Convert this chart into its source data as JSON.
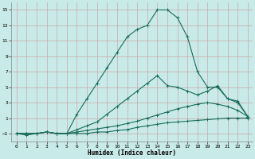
{
  "xlabel": "Humidex (Indice chaleur)",
  "bg_color": "#c8eae8",
  "grid_color": "#c8a8a8",
  "line_color": "#1a6b5a",
  "xlim": [
    -0.5,
    23.5
  ],
  "ylim": [
    -2.0,
    16.0
  ],
  "yticks": [
    -1,
    1,
    3,
    5,
    7,
    9,
    11,
    13,
    15
  ],
  "xticks": [
    0,
    1,
    2,
    3,
    4,
    5,
    6,
    7,
    8,
    9,
    10,
    11,
    12,
    13,
    14,
    15,
    16,
    17,
    18,
    19,
    20,
    21,
    22,
    23
  ],
  "curves": [
    [
      -1,
      -1.2,
      -1,
      -0.8,
      -1,
      -1,
      -1,
      -1,
      -0.8,
      -0.8,
      -0.6,
      -0.5,
      -0.2,
      0.0,
      0.2,
      0.4,
      0.5,
      0.6,
      0.7,
      0.8,
      0.9,
      1.0,
      1.0,
      1.0
    ],
    [
      -1,
      -1,
      -1,
      -0.8,
      -1,
      -1,
      -0.8,
      -0.6,
      -0.4,
      -0.2,
      0.0,
      0.3,
      0.6,
      1.0,
      1.4,
      1.8,
      2.2,
      2.5,
      2.8,
      3.0,
      2.8,
      2.5,
      2.0,
      1.2
    ],
    [
      -1,
      -1,
      -1,
      -0.8,
      -1,
      -1,
      -0.5,
      0.0,
      0.5,
      1.5,
      2.5,
      3.5,
      4.5,
      5.5,
      6.5,
      5.2,
      5.0,
      4.5,
      4.0,
      4.5,
      5.2,
      3.5,
      3.2,
      1.2
    ],
    [
      -1,
      -1,
      -1,
      -0.8,
      -1,
      -1,
      1.5,
      3.5,
      5.5,
      7.5,
      9.5,
      11.5,
      12.5,
      13.0,
      15.0,
      15.0,
      14.0,
      11.5,
      7.0,
      5.0,
      5.0,
      3.5,
      3.0,
      1.2
    ]
  ]
}
